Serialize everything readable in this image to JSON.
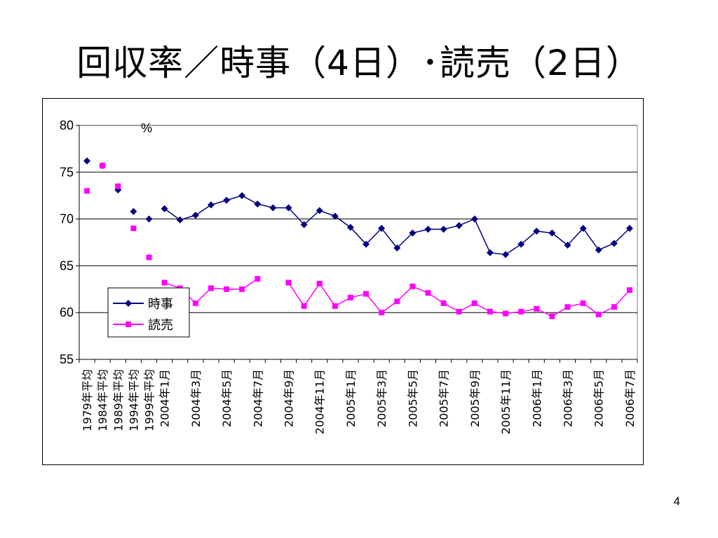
{
  "slide": {
    "title": "回収率／時事（4日）･読売（2日）",
    "page_number": "4"
  },
  "chart_data": {
    "type": "line",
    "unit_label": "%",
    "ylim": [
      55,
      80
    ],
    "yticks": [
      55,
      60,
      65,
      70,
      75,
      80
    ],
    "grid": true,
    "legend_position": "lower-left",
    "categories": [
      "1979年平均",
      "1984年平均",
      "1989年平均",
      "1994年平均",
      "1999年平均",
      "2004年1月",
      "",
      "2004年3月",
      "",
      "2004年5月",
      "",
      "2004年7月",
      "",
      "2004年9月",
      "",
      "2004年11月",
      "",
      "2005年1月",
      "",
      "2005年3月",
      "",
      "2005年5月",
      "",
      "2005年7月",
      "",
      "2005年9月",
      "",
      "2005年11月",
      "",
      "2006年1月",
      "",
      "2006年3月",
      "",
      "2006年5月",
      "",
      "2006年7月"
    ],
    "series": [
      {
        "name": "時事",
        "color": "#000080",
        "marker": "diamond",
        "values": [
          76.2,
          75.7,
          73.1,
          70.8,
          70.0,
          71.1,
          69.9,
          70.4,
          71.5,
          72.0,
          72.5,
          71.6,
          71.2,
          71.2,
          69.4,
          70.9,
          70.3,
          69.1,
          67.3,
          69.0,
          66.9,
          68.5,
          68.9,
          68.9,
          69.3,
          70.0,
          66.4,
          66.2,
          67.3,
          68.7,
          68.5,
          67.2,
          69.0,
          66.7,
          67.4,
          69.0
        ]
      },
      {
        "name": "読売",
        "color": "#ff00ff",
        "marker": "square",
        "values": [
          73.0,
          75.7,
          73.5,
          69.0,
          65.9,
          63.2,
          62.6,
          61.0,
          62.6,
          62.5,
          62.5,
          63.6,
          null,
          63.2,
          60.7,
          63.1,
          60.7,
          61.6,
          62.0,
          60.0,
          61.2,
          62.8,
          62.1,
          61.0,
          60.1,
          61.0,
          60.1,
          59.9,
          60.1,
          60.4,
          59.6,
          60.6,
          61.0,
          59.8,
          60.6,
          62.4
        ]
      }
    ],
    "connected_from_index": 5
  }
}
